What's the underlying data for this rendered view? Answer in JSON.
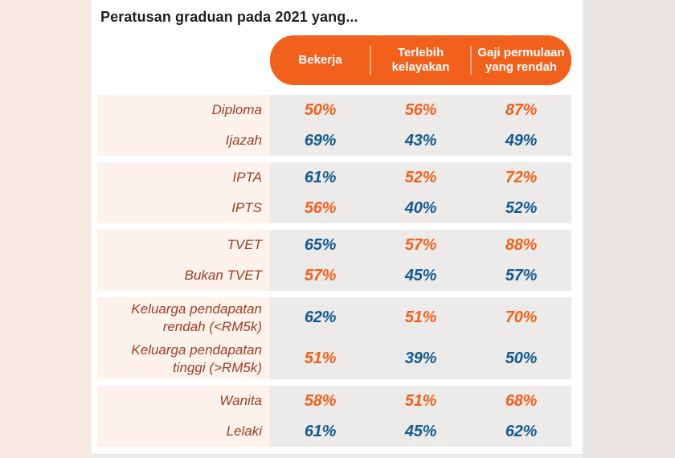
{
  "title": "Peratusan graduan pada 2021 yang...",
  "header": {
    "columns": [
      {
        "label": "Bekerja",
        "lines": [
          "Bekerja"
        ]
      },
      {
        "label": "Terlebih kelayakan",
        "lines": [
          "Terlebih",
          "kelayakan"
        ]
      },
      {
        "label": "Gaji permulaan yang rendah",
        "lines": [
          "Gaji permulaan",
          "yang rendah"
        ]
      }
    ]
  },
  "colors": {
    "accent_orange": "#F2611C",
    "value_blue": "#135A8F",
    "label_brown": "#9A3E24",
    "title_color": "#1F1F1F",
    "label_band_bg": "#FDF3EC",
    "value_band_bg": "#ECEBE9",
    "card_bg": "#FFFFFF",
    "page_bg_left": "#F8EBE3",
    "page_bg_right": "#E7E4E1",
    "header_text": "#FFFFFF",
    "bottom_strip": "#ECEEF0"
  },
  "chart_data": {
    "type": "table",
    "title": "Peratusan graduan pada 2021 yang...",
    "columns": [
      "Bekerja",
      "Terlebih kelayakan",
      "Gaji permulaan yang rendah"
    ],
    "value_color_legend": {
      "orange": "#F2611C",
      "blue": "#135A8F"
    },
    "groups": [
      {
        "rows": [
          {
            "label": "Diploma",
            "label_lines": [
              "Diploma"
            ],
            "tall": false,
            "values": [
              {
                "text": "50%",
                "color": "orange"
              },
              {
                "text": "56%",
                "color": "orange"
              },
              {
                "text": "87%",
                "color": "orange"
              }
            ]
          },
          {
            "label": "Ijazah",
            "label_lines": [
              "Ijazah"
            ],
            "tall": false,
            "values": [
              {
                "text": "69%",
                "color": "blue"
              },
              {
                "text": "43%",
                "color": "blue"
              },
              {
                "text": "49%",
                "color": "blue"
              }
            ]
          }
        ]
      },
      {
        "rows": [
          {
            "label": "IPTA",
            "label_lines": [
              "IPTA"
            ],
            "tall": false,
            "values": [
              {
                "text": "61%",
                "color": "blue"
              },
              {
                "text": "52%",
                "color": "orange"
              },
              {
                "text": "72%",
                "color": "orange"
              }
            ]
          },
          {
            "label": "IPTS",
            "label_lines": [
              "IPTS"
            ],
            "tall": false,
            "values": [
              {
                "text": "56%",
                "color": "orange"
              },
              {
                "text": "40%",
                "color": "blue"
              },
              {
                "text": "52%",
                "color": "blue"
              }
            ]
          }
        ]
      },
      {
        "rows": [
          {
            "label": "TVET",
            "label_lines": [
              "TVET"
            ],
            "tall": false,
            "values": [
              {
                "text": "65%",
                "color": "blue"
              },
              {
                "text": "57%",
                "color": "orange"
              },
              {
                "text": "88%",
                "color": "orange"
              }
            ]
          },
          {
            "label": "Bukan TVET",
            "label_lines": [
              "Bukan TVET"
            ],
            "tall": false,
            "values": [
              {
                "text": "57%",
                "color": "orange"
              },
              {
                "text": "45%",
                "color": "blue"
              },
              {
                "text": "57%",
                "color": "blue"
              }
            ]
          }
        ]
      },
      {
        "rows": [
          {
            "label": "Keluarga pendapatan rendah (<RM5k)",
            "label_lines": [
              "Keluarga pendapatan",
              "rendah (<RM5k)"
            ],
            "tall": true,
            "values": [
              {
                "text": "62%",
                "color": "blue"
              },
              {
                "text": "51%",
                "color": "orange"
              },
              {
                "text": "70%",
                "color": "orange"
              }
            ]
          },
          {
            "label": "Keluarga pendapatan tinggi (>RM5k)",
            "label_lines": [
              "Keluarga pendapatan",
              "tinggi (>RM5k)"
            ],
            "tall": true,
            "values": [
              {
                "text": "51%",
                "color": "orange"
              },
              {
                "text": "39%",
                "color": "blue"
              },
              {
                "text": "50%",
                "color": "blue"
              }
            ]
          }
        ]
      },
      {
        "rows": [
          {
            "label": "Wanita",
            "label_lines": [
              "Wanita"
            ],
            "tall": false,
            "values": [
              {
                "text": "58%",
                "color": "orange"
              },
              {
                "text": "51%",
                "color": "orange"
              },
              {
                "text": "68%",
                "color": "orange"
              }
            ]
          },
          {
            "label": "Lelaki",
            "label_lines": [
              "Lelaki"
            ],
            "tall": false,
            "values": [
              {
                "text": "61%",
                "color": "blue"
              },
              {
                "text": "45%",
                "color": "blue"
              },
              {
                "text": "62%",
                "color": "blue"
              }
            ]
          }
        ]
      }
    ]
  }
}
